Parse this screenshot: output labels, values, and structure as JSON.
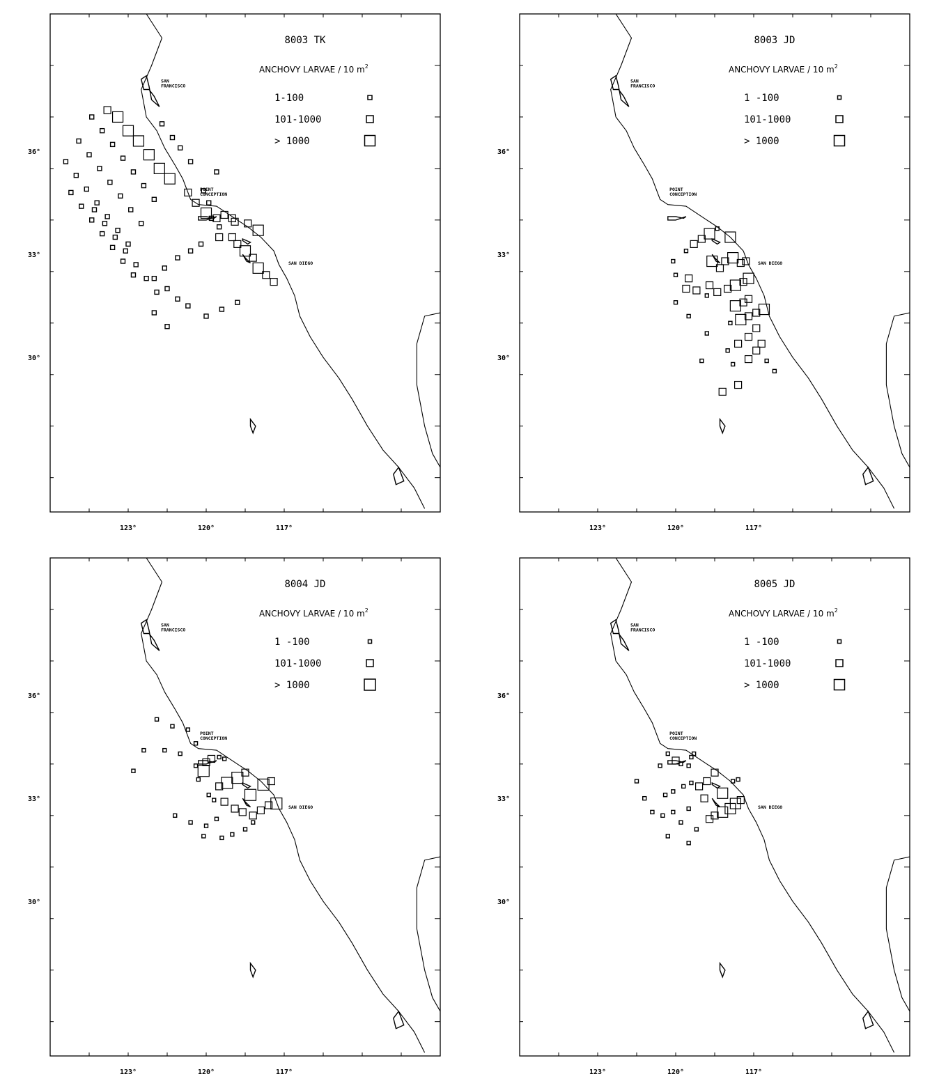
{
  "map": {
    "lon_range": [
      126,
      111
    ],
    "lat_range": [
      40,
      25.5
    ],
    "lon_ticks": [
      {
        "v": 123,
        "label": "123°"
      },
      {
        "v": 120,
        "label": "120°"
      },
      {
        "v": 117,
        "label": "117°"
      }
    ],
    "lat_ticks": [
      {
        "v": 36,
        "label": "36°"
      },
      {
        "v": 33,
        "label": "33°"
      },
      {
        "v": 30,
        "label": "30°"
      }
    ],
    "coastline": [
      [
        122.3,
        40
      ],
      [
        121.7,
        39.3
      ],
      [
        122.1,
        38.5
      ],
      [
        122.5,
        37.8
      ],
      [
        122.4,
        37.4
      ],
      [
        122.3,
        37.0
      ],
      [
        121.9,
        36.6
      ],
      [
        121.6,
        36.1
      ],
      [
        121.2,
        35.6
      ],
      [
        120.9,
        35.2
      ],
      [
        120.6,
        34.6
      ],
      [
        120.3,
        34.45
      ],
      [
        119.6,
        34.4
      ],
      [
        118.8,
        34.0
      ],
      [
        118.4,
        33.8
      ],
      [
        117.9,
        33.5
      ],
      [
        117.4,
        33.1
      ],
      [
        117.2,
        32.7
      ],
      [
        116.9,
        32.3
      ],
      [
        116.6,
        31.8
      ],
      [
        116.4,
        31.2
      ],
      [
        116.0,
        30.6
      ],
      [
        115.5,
        30.0
      ],
      [
        114.9,
        29.4
      ],
      [
        114.4,
        28.8
      ],
      [
        113.8,
        28.0
      ],
      [
        113.2,
        27.3
      ],
      [
        112.6,
        26.8
      ],
      [
        112.0,
        26.2
      ],
      [
        111.6,
        25.6
      ]
    ],
    "gulf_coast": [
      [
        111.0,
        31.3
      ],
      [
        111.6,
        31.2
      ],
      [
        111.9,
        30.4
      ],
      [
        111.9,
        29.2
      ],
      [
        111.6,
        28.0
      ],
      [
        111.3,
        27.2
      ],
      [
        111.0,
        26.8
      ]
    ],
    "sf_bay": [
      [
        122.4,
        37.8
      ],
      [
        122.5,
        38.1
      ],
      [
        122.3,
        38.2
      ],
      [
        122.2,
        37.9
      ],
      [
        122.1,
        37.5
      ],
      [
        121.8,
        37.3
      ],
      [
        122.0,
        37.6
      ],
      [
        122.2,
        37.8
      ]
    ],
    "islands": [
      [
        [
          120.3,
          34.1
        ],
        [
          120.0,
          34.1
        ],
        [
          119.7,
          34.05
        ],
        [
          119.6,
          34.1
        ],
        [
          120.0,
          34.0
        ],
        [
          120.3,
          34.0
        ]
      ],
      [
        [
          118.6,
          33.45
        ],
        [
          118.3,
          33.35
        ],
        [
          118.4,
          33.3
        ],
        [
          118.6,
          33.4
        ]
      ],
      [
        [
          118.6,
          33.0
        ],
        [
          118.45,
          32.8
        ],
        [
          118.3,
          32.75
        ],
        [
          118.5,
          32.9
        ]
      ],
      [
        [
          118.3,
          28.2
        ],
        [
          118.1,
          28.0
        ],
        [
          118.2,
          27.8
        ],
        [
          118.3,
          28.0
        ]
      ],
      [
        [
          112.6,
          26.8
        ],
        [
          112.4,
          26.4
        ],
        [
          112.7,
          26.3
        ],
        [
          112.8,
          26.6
        ]
      ]
    ]
  },
  "places": [
    {
      "name": "san-francisco",
      "lines": [
        "SAN",
        "FRANCISCO"
      ],
      "lon": 121.9,
      "lat": 38.0
    },
    {
      "name": "point-conception",
      "lines": [
        "POINT",
        "CONCEPTION"
      ],
      "lon": 120.4,
      "lat": 34.85
    },
    {
      "name": "san-diego",
      "lines": [
        "SAN DIEGO"
      ],
      "lon": 117.0,
      "lat": 32.7
    }
  ],
  "panels": [
    {
      "title": "8003 TK",
      "legend": {
        "title": "ANCHOVY LARVAE / 10 m",
        "superscript": "2",
        "rows": [
          {
            "label": "1-100",
            "size": 6
          },
          {
            "label": "101-1000",
            "size": 10
          },
          {
            "label": "> 1000",
            "size": 15
          }
        ]
      },
      "stations": [
        [
          121.7,
          36.8,
          1
        ],
        [
          121.3,
          36.4,
          1
        ],
        [
          121.0,
          36.1,
          1
        ],
        [
          120.6,
          35.7,
          1
        ],
        [
          119.6,
          35.4,
          1
        ],
        [
          120.1,
          34.85,
          1
        ],
        [
          119.9,
          34.5,
          1
        ],
        [
          119.8,
          34.05,
          1
        ],
        [
          119.5,
          33.8,
          1
        ],
        [
          119.0,
          33.5,
          2
        ],
        [
          118.8,
          33.3,
          2
        ],
        [
          118.5,
          33.1,
          3
        ],
        [
          118.2,
          32.9,
          2
        ],
        [
          118.0,
          32.6,
          3
        ],
        [
          117.7,
          32.4,
          2
        ],
        [
          117.4,
          32.2,
          2
        ],
        [
          118.9,
          33.95,
          2
        ],
        [
          119.5,
          33.5,
          2
        ],
        [
          120.2,
          33.3,
          1
        ],
        [
          120.6,
          33.1,
          1
        ],
        [
          121.1,
          32.9,
          1
        ],
        [
          121.6,
          32.6,
          1
        ],
        [
          122.0,
          32.3,
          1
        ],
        [
          118.0,
          33.7,
          3
        ],
        [
          118.4,
          33.9,
          2
        ],
        [
          119.0,
          34.05,
          2
        ],
        [
          119.3,
          34.15,
          2
        ],
        [
          119.6,
          34.05,
          2
        ],
        [
          120.0,
          34.2,
          3
        ],
        [
          120.4,
          34.5,
          2
        ],
        [
          120.7,
          34.8,
          2
        ],
        [
          121.4,
          35.2,
          3
        ],
        [
          121.8,
          35.5,
          3
        ],
        [
          122.2,
          35.9,
          3
        ],
        [
          122.6,
          36.3,
          3
        ],
        [
          123.0,
          36.6,
          3
        ],
        [
          123.4,
          37.0,
          3
        ],
        [
          123.8,
          37.2,
          2
        ],
        [
          122.0,
          34.6,
          1
        ],
        [
          122.4,
          35.0,
          1
        ],
        [
          122.8,
          35.4,
          1
        ],
        [
          123.2,
          35.8,
          1
        ],
        [
          123.6,
          36.2,
          1
        ],
        [
          124.0,
          36.6,
          1
        ],
        [
          124.4,
          37.0,
          1
        ],
        [
          122.5,
          33.9,
          1
        ],
        [
          122.9,
          34.3,
          1
        ],
        [
          123.3,
          34.7,
          1
        ],
        [
          123.7,
          35.1,
          1
        ],
        [
          124.1,
          35.5,
          1
        ],
        [
          124.5,
          35.9,
          1
        ],
        [
          124.9,
          36.3,
          1
        ],
        [
          123.0,
          33.3,
          1
        ],
        [
          123.4,
          33.7,
          1
        ],
        [
          123.8,
          34.1,
          1
        ],
        [
          124.2,
          34.5,
          1
        ],
        [
          124.6,
          34.9,
          1
        ],
        [
          125.0,
          35.3,
          1
        ],
        [
          125.4,
          35.7,
          1
        ],
        [
          122.8,
          32.4,
          1
        ],
        [
          123.2,
          32.8,
          1
        ],
        [
          123.6,
          33.2,
          1
        ],
        [
          124.0,
          33.6,
          1
        ],
        [
          124.4,
          34.0,
          1
        ],
        [
          124.8,
          34.4,
          1
        ],
        [
          125.2,
          34.8,
          1
        ],
        [
          121.9,
          31.9,
          1
        ],
        [
          122.3,
          32.3,
          1
        ],
        [
          122.7,
          32.7,
          1
        ],
        [
          123.1,
          33.1,
          1
        ],
        [
          123.5,
          33.5,
          1
        ],
        [
          123.9,
          33.9,
          1
        ],
        [
          124.3,
          34.3,
          1
        ],
        [
          120.7,
          31.5,
          1
        ],
        [
          121.1,
          31.7,
          1
        ],
        [
          121.5,
          32.0,
          1
        ],
        [
          122.0,
          31.3,
          1
        ],
        [
          121.5,
          30.9,
          1
        ],
        [
          120.0,
          31.2,
          1
        ],
        [
          119.4,
          31.4,
          1
        ],
        [
          118.8,
          31.6,
          1
        ]
      ]
    },
    {
      "title": "8003 JD",
      "legend": {
        "title": "ANCHOVY LARVAE / 10 m",
        "superscript": "2",
        "rows": [
          {
            "label": "1 -100",
            "size": 5
          },
          {
            "label": "101-1000",
            "size": 10
          },
          {
            "label": "> 1000",
            "size": 15
          }
        ]
      },
      "stations": [
        [
          119.6,
          33.1,
          1
        ],
        [
          119.3,
          33.3,
          2
        ],
        [
          119.0,
          33.45,
          2
        ],
        [
          118.7,
          33.6,
          3
        ],
        [
          118.4,
          33.75,
          1
        ],
        [
          117.9,
          33.5,
          3
        ],
        [
          118.6,
          32.8,
          3
        ],
        [
          118.3,
          32.6,
          2
        ],
        [
          118.1,
          32.8,
          2
        ],
        [
          117.8,
          32.9,
          3
        ],
        [
          117.5,
          32.75,
          2
        ],
        [
          117.3,
          32.8,
          2
        ],
        [
          119.5,
          32.3,
          2
        ],
        [
          118.7,
          32.1,
          2
        ],
        [
          118.4,
          31.9,
          2
        ],
        [
          118.0,
          32.0,
          2
        ],
        [
          117.7,
          32.1,
          3
        ],
        [
          117.4,
          32.2,
          2
        ],
        [
          117.2,
          32.3,
          3
        ],
        [
          118.8,
          31.8,
          1
        ],
        [
          119.2,
          31.95,
          2
        ],
        [
          119.6,
          32.0,
          2
        ],
        [
          120.0,
          31.6,
          1
        ],
        [
          117.7,
          31.5,
          3
        ],
        [
          117.4,
          31.6,
          2
        ],
        [
          117.2,
          31.7,
          2
        ],
        [
          117.9,
          31.0,
          1
        ],
        [
          117.5,
          31.1,
          3
        ],
        [
          117.2,
          31.2,
          2
        ],
        [
          116.9,
          31.3,
          2
        ],
        [
          116.6,
          31.4,
          3
        ],
        [
          116.9,
          30.85,
          2
        ],
        [
          117.2,
          30.6,
          2
        ],
        [
          117.6,
          30.4,
          2
        ],
        [
          118.0,
          30.2,
          1
        ],
        [
          117.8,
          29.8,
          1
        ],
        [
          117.2,
          29.95,
          2
        ],
        [
          116.9,
          30.2,
          2
        ],
        [
          116.7,
          30.4,
          2
        ],
        [
          116.5,
          29.9,
          1
        ],
        [
          116.2,
          29.6,
          1
        ],
        [
          117.6,
          29.2,
          2
        ],
        [
          118.2,
          29.0,
          2
        ],
        [
          119.0,
          29.9,
          1
        ],
        [
          120.1,
          32.8,
          1
        ],
        [
          120.0,
          32.4,
          1
        ],
        [
          119.5,
          31.2,
          1
        ],
        [
          118.8,
          30.7,
          1
        ]
      ]
    },
    {
      "title": "8004 JD",
      "legend": {
        "title": "ANCHOVY LARVAE / 10 m",
        "superscript": "2",
        "rows": [
          {
            "label": "1 -100",
            "size": 5
          },
          {
            "label": "101-1000",
            "size": 10
          },
          {
            "label": "> 1000",
            "size": 16
          }
        ]
      },
      "stations": [
        [
          121.9,
          35.3,
          1
        ],
        [
          121.3,
          35.1,
          1
        ],
        [
          120.7,
          35.0,
          1
        ],
        [
          120.4,
          34.6,
          1
        ],
        [
          121.0,
          34.3,
          1
        ],
        [
          121.6,
          34.4,
          1
        ],
        [
          122.4,
          34.4,
          1
        ],
        [
          122.8,
          33.8,
          1
        ],
        [
          120.4,
          33.95,
          1
        ],
        [
          120.0,
          34.05,
          2
        ],
        [
          119.8,
          34.15,
          2
        ],
        [
          119.5,
          34.2,
          1
        ],
        [
          119.3,
          34.15,
          1
        ],
        [
          120.1,
          33.8,
          3
        ],
        [
          120.3,
          33.55,
          1
        ],
        [
          119.5,
          33.35,
          2
        ],
        [
          119.2,
          33.45,
          3
        ],
        [
          118.8,
          33.6,
          3
        ],
        [
          118.5,
          33.75,
          2
        ],
        [
          118.3,
          33.1,
          3
        ],
        [
          117.8,
          33.4,
          3
        ],
        [
          117.5,
          33.5,
          2
        ],
        [
          119.9,
          33.1,
          1
        ],
        [
          119.7,
          32.95,
          1
        ],
        [
          119.3,
          32.9,
          2
        ],
        [
          118.9,
          32.7,
          2
        ],
        [
          118.6,
          32.6,
          2
        ],
        [
          118.2,
          32.5,
          2
        ],
        [
          117.9,
          32.65,
          2
        ],
        [
          117.6,
          32.8,
          2
        ],
        [
          117.3,
          32.85,
          3
        ],
        [
          119.6,
          32.4,
          1
        ],
        [
          120.0,
          32.2,
          1
        ],
        [
          118.5,
          32.1,
          1
        ],
        [
          118.2,
          32.3,
          1
        ],
        [
          119.0,
          31.95,
          1
        ],
        [
          119.4,
          31.85,
          1
        ],
        [
          120.1,
          31.9,
          1
        ],
        [
          120.6,
          32.3,
          1
        ],
        [
          121.2,
          32.5,
          1
        ]
      ]
    },
    {
      "title": "8005 JD",
      "legend": {
        "title": "ANCHOVY LARVAE / 10 m",
        "superscript": "2",
        "rows": [
          {
            "label": "1 -100",
            "size": 5
          },
          {
            "label": "101-1000",
            "size": 10
          },
          {
            "label": "> 1000",
            "size": 15
          }
        ]
      },
      "stations": [
        [
          120.0,
          34.1,
          2
        ],
        [
          119.8,
          34.0,
          1
        ],
        [
          119.5,
          33.95,
          1
        ],
        [
          119.4,
          34.2,
          1
        ],
        [
          119.3,
          34.3,
          1
        ],
        [
          119.1,
          33.35,
          2
        ],
        [
          118.8,
          33.5,
          2
        ],
        [
          118.5,
          33.75,
          2
        ],
        [
          118.2,
          33.15,
          3
        ],
        [
          117.8,
          33.5,
          1
        ],
        [
          117.6,
          33.55,
          1
        ],
        [
          119.4,
          33.45,
          1
        ],
        [
          119.7,
          33.35,
          1
        ],
        [
          120.1,
          33.2,
          1
        ],
        [
          120.4,
          33.1,
          1
        ],
        [
          118.9,
          33.0,
          2
        ],
        [
          117.5,
          32.95,
          2
        ],
        [
          117.7,
          32.85,
          3
        ],
        [
          117.9,
          32.7,
          3
        ],
        [
          118.2,
          32.6,
          3
        ],
        [
          118.5,
          32.5,
          2
        ],
        [
          118.7,
          32.4,
          2
        ],
        [
          119.5,
          32.7,
          1
        ],
        [
          120.1,
          32.6,
          1
        ],
        [
          120.5,
          32.5,
          1
        ],
        [
          121.2,
          33.0,
          1
        ],
        [
          120.9,
          32.6,
          1
        ],
        [
          119.8,
          32.3,
          1
        ],
        [
          119.2,
          32.1,
          1
        ],
        [
          121.5,
          33.5,
          1
        ],
        [
          120.6,
          33.95,
          1
        ],
        [
          120.3,
          34.3,
          1
        ],
        [
          119.5,
          31.7,
          1
        ],
        [
          120.3,
          31.9,
          1
        ]
      ]
    }
  ]
}
